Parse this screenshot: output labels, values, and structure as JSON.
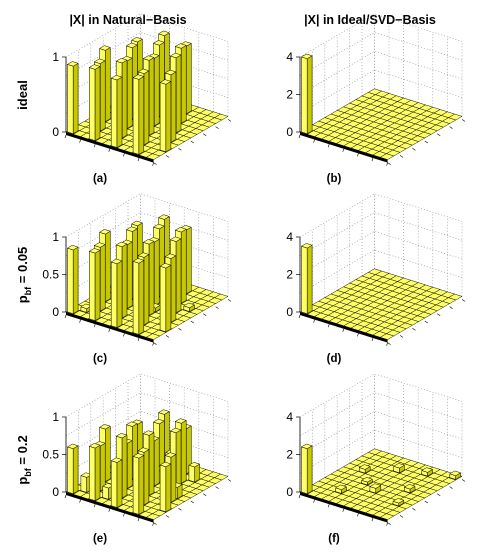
{
  "columns": [
    "|X| in Natural−Basis",
    "|X| in Ideal/SVD−Basis"
  ],
  "rows": [
    {
      "label": "ideal",
      "sub": "",
      "suffix": ""
    },
    {
      "label": "p",
      "sub": "bf",
      "suffix": " = 0.05"
    },
    {
      "label": "p",
      "sub": "bf",
      "suffix": " = 0.2"
    }
  ],
  "colors": {
    "bar_face": "#ffff66",
    "bar_side": "#c8c800",
    "bar_dark": "#8c8c00",
    "grid": "#888888"
  },
  "chart_data": [
    {
      "type": "bar3d",
      "panel_label": "(a)",
      "basis": "natural",
      "condition": "ideal",
      "zlim": [
        0,
        1
      ],
      "zticks": [
        0,
        1
      ],
      "bars": [
        [
          0,
          0,
          0.9
        ],
        [
          3,
          0,
          0.95
        ],
        [
          6,
          0,
          0.9
        ],
        [
          9,
          0,
          1.0
        ],
        [
          2,
          2,
          0.9
        ],
        [
          5,
          2,
          1.0
        ],
        [
          8,
          2,
          0.95
        ],
        [
          11,
          2,
          0.9
        ],
        [
          1,
          4,
          0.95
        ],
        [
          4,
          4,
          0.9
        ],
        [
          7,
          4,
          1.0
        ],
        [
          10,
          4,
          0.9
        ],
        [
          3,
          6,
          0.95
        ],
        [
          6,
          6,
          0.9
        ],
        [
          9,
          6,
          1.0
        ],
        [
          2,
          8,
          0.9
        ],
        [
          5,
          8,
          0.95
        ],
        [
          8,
          8,
          1.0
        ],
        [
          4,
          10,
          0.95
        ],
        [
          7,
          10,
          0.9
        ]
      ]
    },
    {
      "type": "bar3d",
      "panel_label": "(b)",
      "basis": "ideal/svd",
      "condition": "ideal",
      "zlim": [
        0,
        4
      ],
      "zticks": [
        0,
        2,
        4
      ],
      "bars": [
        [
          0,
          0,
          4.0
        ]
      ]
    },
    {
      "type": "bar3d",
      "panel_label": "(c)",
      "basis": "natural",
      "condition": "p_bf = 0.05",
      "zlim": [
        0,
        1
      ],
      "zticks": [
        0,
        0.5,
        1
      ],
      "bars": [
        [
          0,
          0,
          0.85
        ],
        [
          3,
          0,
          0.9
        ],
        [
          6,
          0,
          0.85
        ],
        [
          9,
          0,
          0.95
        ],
        [
          2,
          2,
          0.85
        ],
        [
          5,
          2,
          0.95
        ],
        [
          8,
          2,
          0.9
        ],
        [
          11,
          2,
          0.85
        ],
        [
          1,
          4,
          0.9
        ],
        [
          4,
          4,
          0.85
        ],
        [
          7,
          4,
          0.95
        ],
        [
          10,
          4,
          0.85
        ],
        [
          3,
          6,
          0.9
        ],
        [
          6,
          6,
          0.85
        ],
        [
          9,
          6,
          0.95
        ],
        [
          2,
          8,
          0.85
        ],
        [
          5,
          8,
          0.9
        ],
        [
          8,
          8,
          0.95
        ],
        [
          4,
          10,
          0.9
        ],
        [
          7,
          10,
          0.85
        ],
        [
          1,
          1,
          0.05
        ],
        [
          4,
          3,
          0.05
        ],
        [
          7,
          5,
          0.05
        ],
        [
          10,
          7,
          0.05
        ],
        [
          2,
          9,
          0.05
        ]
      ]
    },
    {
      "type": "bar3d",
      "panel_label": "(d)",
      "basis": "ideal/svd",
      "condition": "p_bf = 0.05",
      "zlim": [
        0,
        4
      ],
      "zticks": [
        0,
        2,
        4
      ],
      "bars": [
        [
          0,
          0,
          3.5
        ]
      ]
    },
    {
      "type": "bar3d",
      "panel_label": "(e)",
      "basis": "natural",
      "condition": "p_bf = 0.2",
      "zlim": [
        0,
        1
      ],
      "zticks": [
        0,
        0.5,
        1
      ],
      "bars": [
        [
          0,
          0,
          0.6
        ],
        [
          3,
          0,
          0.7
        ],
        [
          6,
          0,
          0.6
        ],
        [
          9,
          0,
          0.75
        ],
        [
          2,
          2,
          0.6
        ],
        [
          5,
          2,
          0.8
        ],
        [
          8,
          2,
          0.7
        ],
        [
          11,
          2,
          0.6
        ],
        [
          1,
          4,
          0.7
        ],
        [
          4,
          4,
          0.6
        ],
        [
          7,
          4,
          0.8
        ],
        [
          10,
          4,
          0.6
        ],
        [
          3,
          6,
          0.7
        ],
        [
          6,
          6,
          0.6
        ],
        [
          9,
          6,
          0.8
        ],
        [
          2,
          8,
          0.6
        ],
        [
          5,
          8,
          0.7
        ],
        [
          8,
          8,
          0.8
        ],
        [
          4,
          10,
          0.7
        ],
        [
          7,
          10,
          0.6
        ],
        [
          1,
          1,
          0.2
        ],
        [
          4,
          1,
          0.15
        ],
        [
          7,
          3,
          0.2
        ],
        [
          10,
          5,
          0.15
        ],
        [
          3,
          5,
          0.2
        ],
        [
          6,
          7,
          0.15
        ],
        [
          9,
          9,
          0.2
        ],
        [
          2,
          11,
          0.15
        ],
        [
          5,
          10,
          0.2
        ],
        [
          8,
          6,
          0.15
        ]
      ]
    },
    {
      "type": "bar3d",
      "panel_label": "(f)",
      "basis": "ideal/svd",
      "condition": "p_bf = 0.2",
      "zlim": [
        0,
        4
      ],
      "zticks": [
        0,
        2,
        4
      ],
      "bars": [
        [
          0,
          0,
          2.4
        ],
        [
          3,
          2,
          0.2
        ],
        [
          6,
          4,
          0.25
        ],
        [
          9,
          6,
          0.2
        ],
        [
          2,
          7,
          0.2
        ],
        [
          5,
          9,
          0.25
        ],
        [
          8,
          10,
          0.2
        ],
        [
          11,
          11,
          0.2
        ],
        [
          4,
          5,
          0.15
        ],
        [
          10,
          3,
          0.15
        ]
      ]
    }
  ]
}
